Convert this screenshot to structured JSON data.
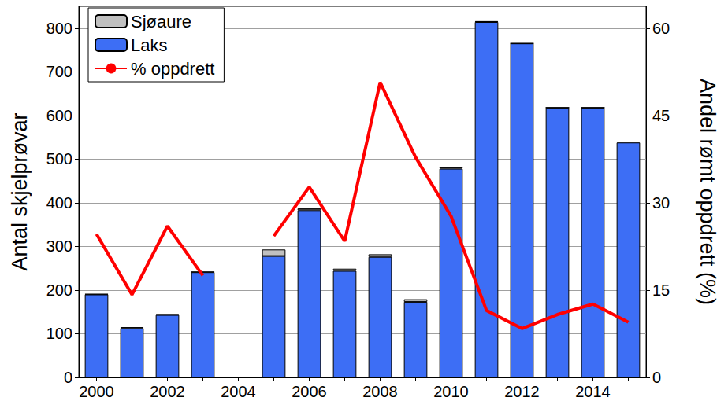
{
  "chart_data": {
    "type": "bar",
    "categories": [
      "2000",
      null,
      "2002",
      null,
      "2004",
      null,
      "2006",
      null,
      "2008",
      null,
      "2010",
      null,
      "2012",
      null,
      "2014",
      null
    ],
    "series": [
      {
        "name": "Sjøaure",
        "type": "bar",
        "color": "#c0c0c0",
        "values": [
          1,
          2,
          2,
          1,
          null,
          15,
          4,
          5,
          6,
          6,
          3,
          2,
          0,
          0,
          0,
          2
        ]
      },
      {
        "name": "Laks",
        "type": "bar",
        "color": "#3d6ef5",
        "values": [
          190,
          113,
          143,
          241,
          null,
          278,
          383,
          244,
          276,
          173,
          478,
          814,
          765,
          618,
          618,
          538
        ]
      },
      {
        "name": "% oppdrett",
        "type": "line",
        "axis": "y2",
        "color": "#ff0000",
        "line_style": "solid",
        "values": [
          24.6,
          14.2,
          26,
          17.5,
          null,
          24.3,
          32.7,
          23.4,
          50.7,
          37.8,
          27.7,
          11.5,
          8.4,
          10.8,
          12.6,
          9.5
        ]
      }
    ],
    "y_label": "Antal skjelprøvar",
    "y2_label": "Andel rømt oppdrett (%)",
    "ylim": [
      0,
      850
    ],
    "yticks": [
      0,
      100,
      200,
      300,
      400,
      500,
      600,
      700,
      800
    ],
    "y2lim": [
      0,
      63.75
    ],
    "y2ticks": [
      0,
      15,
      30,
      45,
      60
    ],
    "stacked": true,
    "grid": true,
    "legend": "upper left"
  }
}
